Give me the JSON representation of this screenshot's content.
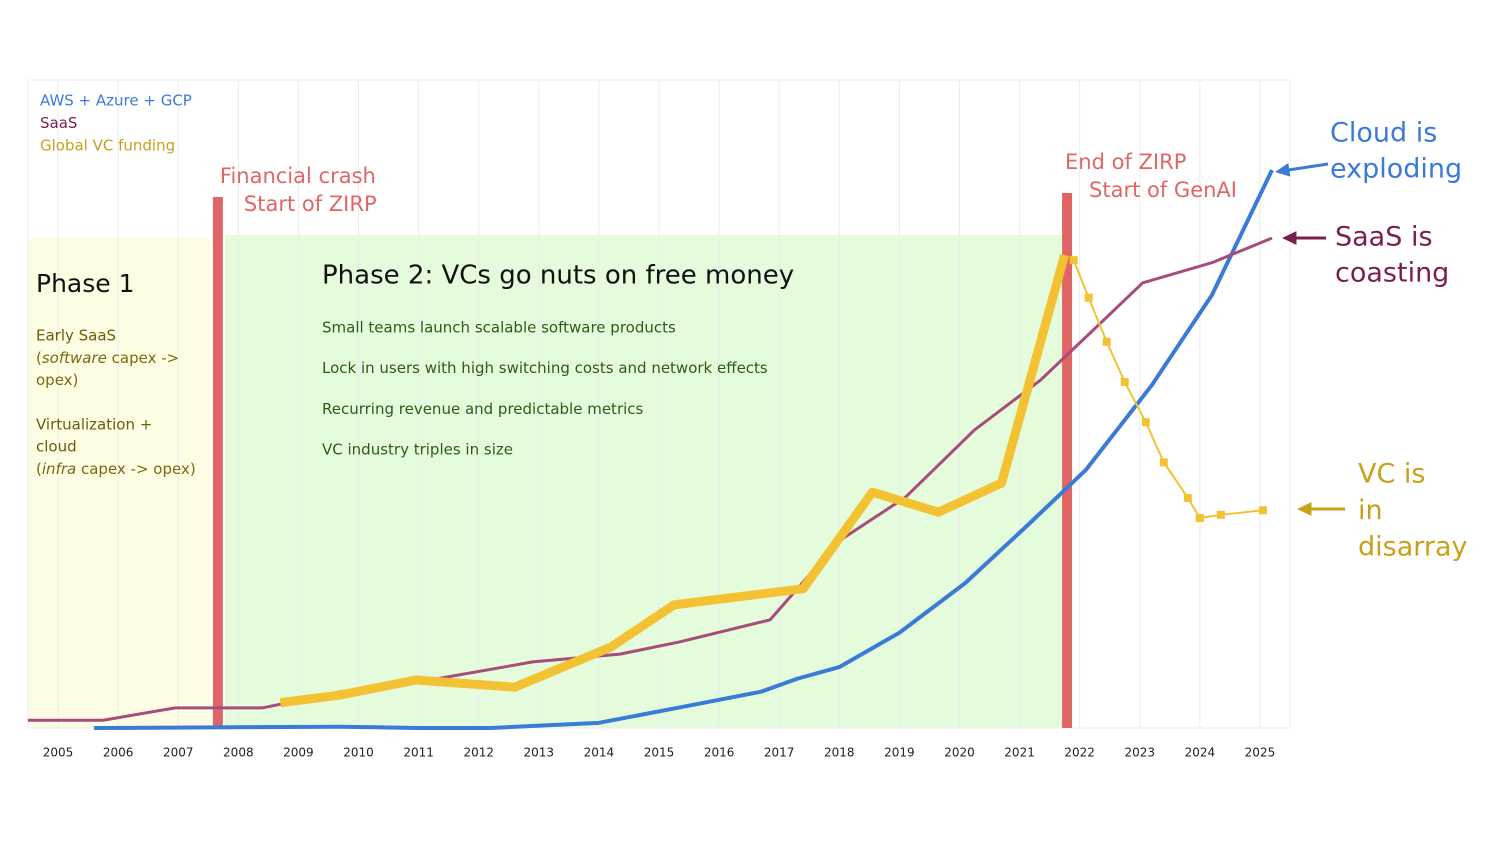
{
  "chart_data": {
    "type": "line",
    "xlim": [
      2004.5,
      2025.5
    ],
    "xticks": [
      2005,
      2006,
      2007,
      2008,
      2009,
      2010,
      2011,
      2012,
      2013,
      2014,
      2015,
      2016,
      2017,
      2018,
      2019,
      2020,
      2021,
      2022,
      2023,
      2024,
      2025
    ],
    "ylim": [
      0,
      100
    ],
    "grid": true,
    "legend": "top-left",
    "series": [
      {
        "name": "AWS + Azure + GCP",
        "color": "#3b7bd6",
        "width": 4,
        "label_color": "#3b7bd6",
        "end_label": [
          "Cloud is",
          "exploding"
        ],
        "x": [
          2005.6,
          2009.7,
          2011.0,
          2012.2,
          2014.0,
          2015.3,
          2016.7,
          2017.3,
          2018.0,
          2019.0,
          2020.1,
          2021.1,
          2022.1,
          2023.2,
          2024.2,
          2025.2
        ],
        "values": [
          0,
          0.2,
          0,
          0,
          0.8,
          3.1,
          5.6,
          7.6,
          9.4,
          14.7,
          22.4,
          31.0,
          39.8,
          52.9,
          66.8,
          86.1
        ]
      },
      {
        "name": "SaaS",
        "color": "#a84d7a",
        "width": 3,
        "label_color": "#7a1f4d",
        "end_label": [
          "SaaS is",
          "coasting"
        ],
        "x": [
          2004.5,
          2005.75,
          2006.95,
          2008.4,
          2009.7,
          2011.0,
          2012.9,
          2014.35,
          2015.35,
          2016.85,
          2018.0,
          2019.1,
          2020.25,
          2021.35,
          2022.1,
          2023.05,
          2024.2,
          2025.2
        ],
        "values": [
          1.2,
          1.2,
          3.1,
          3.1,
          5.6,
          7.1,
          10.2,
          11.4,
          13.3,
          16.7,
          28.9,
          35.6,
          46.0,
          53.7,
          60.3,
          68.7,
          71.8,
          75.6
        ]
      },
      {
        "name": "Global VC funding",
        "color": "#f2c232",
        "width": 9,
        "label_color": "#c9a01a",
        "end_label": [
          "VC is",
          "in",
          "disarray"
        ],
        "x": [
          2008.7,
          2009.7,
          2010.95,
          2012.6,
          2014.2,
          2015.25,
          2017.4,
          2018.55,
          2019.65,
          2020.7,
          2021.75
        ],
        "values": [
          3.9,
          5.1,
          7.4,
          6.3,
          12.5,
          19.0,
          21.5,
          36.4,
          33.3,
          37.8,
          73.0
        ]
      },
      {
        "color": "#f2c232",
        "width": 2,
        "markers": true,
        "x": [
          2021.9,
          2022.15,
          2022.45,
          2022.75,
          2023.1,
          2023.4,
          2023.8,
          2024.0,
          2024.35,
          2025.05
        ],
        "values": [
          72.2,
          66.4,
          59.6,
          53.4,
          47.2,
          41.0,
          35.5,
          32.4,
          32.9,
          33.6
        ]
      }
    ],
    "events": [
      {
        "x": 2007.66,
        "label": [
          "Financial crash",
          "Start of ZIRP"
        ]
      },
      {
        "x": 2021.79,
        "label": [
          "End of ZIRP",
          "Start of GenAI"
        ]
      }
    ],
    "phases": [
      {
        "title": "Phase 1",
        "color": "#fdfde3",
        "items": [
          {
            "heading": [
              "Early SaaS"
            ],
            "detail": [
              [
                {
                  "text": "("
                },
                {
                  "text": "software",
                  "italic": true
                },
                {
                  "text": " capex ->"
                }
              ],
              [
                {
                  "text": "opex)"
                }
              ]
            ]
          },
          {
            "heading": [
              "Virtualization +",
              "cloud"
            ],
            "detail": [
              [
                {
                  "text": "("
                },
                {
                  "text": "infra",
                  "italic": true
                },
                {
                  "text": " capex -> opex)"
                }
              ]
            ]
          }
        ]
      },
      {
        "title": "Phase 2: VCs go nuts on free money",
        "color": "#e4fbdc",
        "bullets": [
          "Small teams launch scalable software products",
          "Lock in users with high switching costs and network effects",
          "Recurring revenue and predictable metrics",
          "VC industry triples in size"
        ]
      }
    ]
  }
}
